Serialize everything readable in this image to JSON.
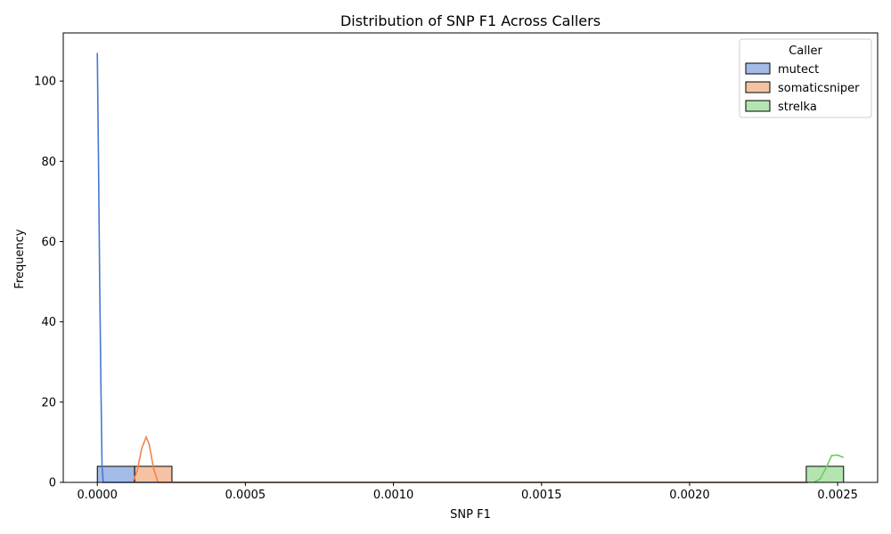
{
  "chart_data": {
    "type": "histogram",
    "title": "Distribution of SNP F1 Across Callers",
    "xlabel": "SNP F1",
    "ylabel": "Frequency",
    "xlim": [
      -0.000115,
      0.002635
    ],
    "ylim": [
      0,
      112
    ],
    "x_ticks": [
      0.0,
      0.0005,
      0.001,
      0.0015,
      0.002,
      0.0025
    ],
    "x_tick_labels": [
      "0.0000",
      "0.0005",
      "0.0010",
      "0.0015",
      "0.0020",
      "0.0025"
    ],
    "y_ticks": [
      0,
      20,
      40,
      60,
      80,
      100
    ],
    "y_tick_labels": [
      "0",
      "20",
      "40",
      "60",
      "80",
      "100"
    ],
    "legend": {
      "title": "Caller",
      "position": "top-right"
    },
    "grid": false,
    "series": [
      {
        "name": "mutect",
        "color": "#4878d0",
        "bars": [
          {
            "x0": 0.0,
            "x1": 0.000126,
            "count": 4
          }
        ],
        "kde": [
          [
            0.0,
            107
          ],
          [
            4e-06,
            80
          ],
          [
            8e-06,
            50
          ],
          [
            1.2e-05,
            25
          ],
          [
            1.6e-05,
            4
          ],
          [
            2e-05,
            0
          ],
          [
            0.0024,
            0
          ]
        ]
      },
      {
        "name": "somaticsniper",
        "color": "#ee854a",
        "bars": [
          {
            "x0": 0.000126,
            "x1": 0.000252,
            "count": 4
          }
        ],
        "kde": [
          [
            0.00012,
            0
          ],
          [
            0.000135,
            3
          ],
          [
            0.00015,
            8.5
          ],
          [
            0.000165,
            11.3
          ],
          [
            0.000175,
            9.5
          ],
          [
            0.00019,
            3.5
          ],
          [
            0.000205,
            0
          ],
          [
            0.0024,
            0
          ]
        ]
      },
      {
        "name": "strelka",
        "color": "#6acc64",
        "bars": [
          {
            "x0": 0.002394,
            "x1": 0.00252,
            "count": 4
          }
        ],
        "kde": [
          [
            0.00242,
            0
          ],
          [
            0.00244,
            0.8
          ],
          [
            0.00246,
            3.5
          ],
          [
            0.00248,
            6.7
          ],
          [
            0.0025,
            6.8
          ],
          [
            0.00252,
            6.2
          ]
        ]
      }
    ]
  }
}
